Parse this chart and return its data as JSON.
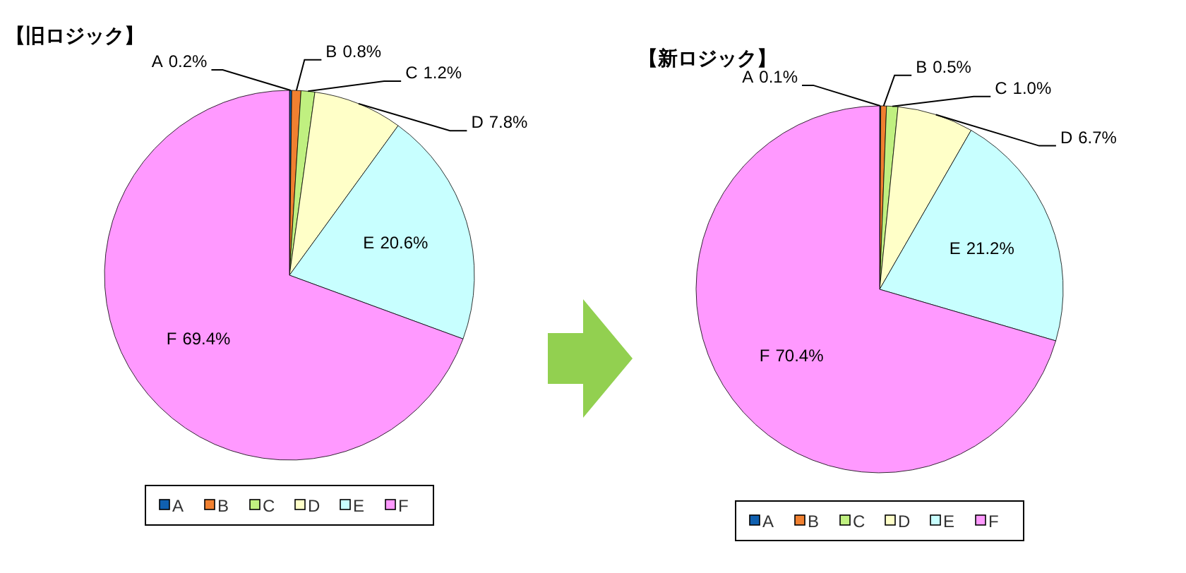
{
  "chart_data": [
    {
      "type": "pie",
      "title": "【旧ロジック】",
      "categories": [
        "A",
        "B",
        "C",
        "D",
        "E",
        "F"
      ],
      "values": [
        0.2,
        0.8,
        1.2,
        7.8,
        20.6,
        69.4
      ],
      "value_labels": [
        "0.2%",
        "0.8%",
        "1.2%",
        "7.8%",
        "20.6%",
        "69.4%"
      ],
      "colors": [
        "#1060b0",
        "#f08030",
        "#c0f080",
        "#ffffc8",
        "#c8ffff",
        "#ff99ff"
      ],
      "legend": "bottom"
    },
    {
      "type": "pie",
      "title": "【新ロジック】",
      "categories": [
        "A",
        "B",
        "C",
        "D",
        "E",
        "F"
      ],
      "values": [
        0.1,
        0.5,
        1.0,
        6.7,
        21.2,
        70.4
      ],
      "value_labels": [
        "0.1%",
        "0.5%",
        "1.0%",
        "6.7%",
        "21.2%",
        "70.4%"
      ],
      "colors": [
        "#1060b0",
        "#f08030",
        "#c0f080",
        "#ffffc8",
        "#c8ffff",
        "#ff99ff"
      ],
      "legend": "bottom"
    }
  ]
}
